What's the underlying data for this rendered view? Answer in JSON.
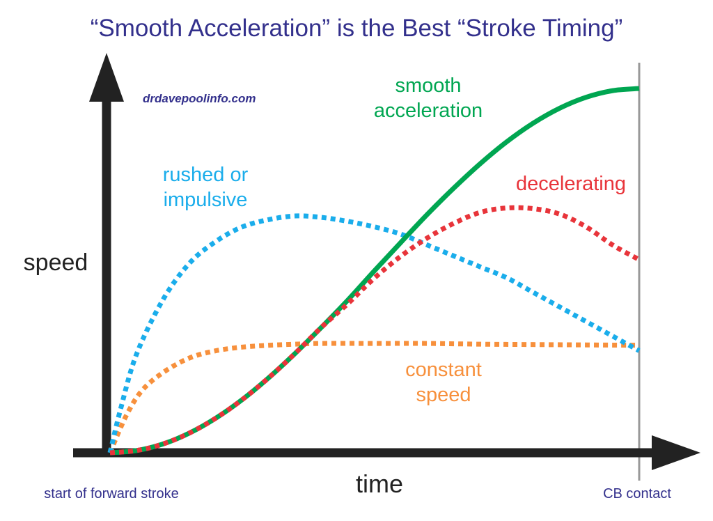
{
  "chart_data": {
    "type": "line",
    "title": "“Smooth Acceleration” is the Best “Stroke Timing”",
    "watermark": "drdavepoolinfo.com",
    "xlabel": "time",
    "ylabel": "speed",
    "x_start_label": "start of forward stroke",
    "x_end_label": "CB contact",
    "xlim": [
      0,
      1
    ],
    "ylim": [
      0,
      1
    ],
    "grid": false,
    "series": [
      {
        "name": "smooth acceleration",
        "label_lines": [
          "smooth",
          "acceleration"
        ],
        "color": "#00a651",
        "style": "solid",
        "x": [
          0,
          0.05,
          0.1,
          0.15,
          0.2,
          0.25,
          0.3,
          0.35,
          0.4,
          0.45,
          0.5,
          0.55,
          0.6,
          0.65,
          0.7,
          0.75,
          0.8,
          0.85,
          0.9,
          0.95,
          1.0
        ],
        "y": [
          0,
          0.006,
          0.024,
          0.054,
          0.095,
          0.146,
          0.206,
          0.273,
          0.345,
          0.42,
          0.5,
          0.578,
          0.655,
          0.727,
          0.794,
          0.854,
          0.905,
          0.946,
          0.976,
          0.994,
          1.0
        ]
      },
      {
        "name": "decelerating",
        "label_lines": [
          "decelerating"
        ],
        "color": "#e8343a",
        "style": "dotted",
        "x": [
          0,
          0.05,
          0.1,
          0.15,
          0.2,
          0.25,
          0.3,
          0.35,
          0.4,
          0.45,
          0.5,
          0.55,
          0.6,
          0.65,
          0.7,
          0.75,
          0.8,
          0.85,
          0.9,
          0.95,
          1.0
        ],
        "y": [
          0,
          0.006,
          0.024,
          0.054,
          0.095,
          0.146,
          0.206,
          0.273,
          0.345,
          0.41,
          0.48,
          0.54,
          0.59,
          0.63,
          0.66,
          0.672,
          0.67,
          0.655,
          0.62,
          0.57,
          0.53
        ]
      },
      {
        "name": "rushed or impulsive",
        "label_lines": [
          "rushed or",
          "impulsive"
        ],
        "color": "#1aadeb",
        "style": "dotted",
        "x": [
          0,
          0.02,
          0.05,
          0.1,
          0.15,
          0.2,
          0.25,
          0.3,
          0.35,
          0.4,
          0.45,
          0.5,
          0.55,
          0.6,
          0.65,
          0.7,
          0.75,
          0.8,
          0.85,
          0.9,
          0.95,
          1.0
        ],
        "y": [
          0,
          0.12,
          0.27,
          0.42,
          0.52,
          0.58,
          0.62,
          0.64,
          0.65,
          0.646,
          0.635,
          0.62,
          0.6,
          0.57,
          0.54,
          0.51,
          0.48,
          0.44,
          0.4,
          0.36,
          0.32,
          0.28
        ]
      },
      {
        "name": "constant speed",
        "label_lines": [
          "constant",
          "speed"
        ],
        "color": "#f7903c",
        "style": "dotted",
        "x": [
          0,
          0.03,
          0.06,
          0.1,
          0.15,
          0.2,
          0.25,
          0.3,
          0.35,
          0.4,
          0.5,
          0.6,
          0.7,
          0.8,
          0.9,
          1.0
        ],
        "y": [
          0,
          0.1,
          0.17,
          0.22,
          0.26,
          0.28,
          0.29,
          0.295,
          0.298,
          0.3,
          0.3,
          0.3,
          0.298,
          0.297,
          0.296,
          0.295
        ]
      }
    ]
  },
  "colors": {
    "title": "#33308c",
    "axis": "#222222",
    "contact_line": "#999999",
    "watermark": "#33308c",
    "footer_label": "#33308c"
  }
}
